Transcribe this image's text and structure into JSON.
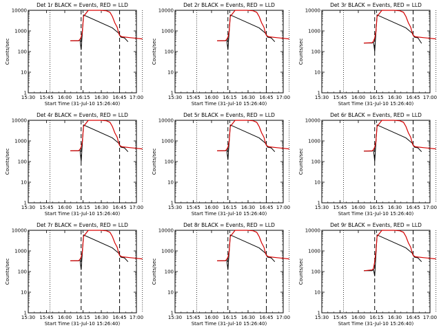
{
  "chart_data": [
    {
      "type": "line",
      "title": "Det 1r BLACK = Events, RED = LLD",
      "xlabel": "Start Time (31-Jul-10 15:26:40)",
      "ylabel": "Counts/sec",
      "x_ticks": [
        "15:30",
        "15:45",
        "16:00",
        "16:15",
        "16:30",
        "16:45",
        "17:00"
      ],
      "y_ticks": [
        "1",
        "10",
        "100",
        "1000",
        "10000"
      ],
      "yscale": "log",
      "ylim": [
        1,
        10000
      ],
      "xlim": [
        "15:30",
        "17:10"
      ],
      "grid": false,
      "dotted_vlines": [
        "15:48",
        "17:05"
      ],
      "dashed_vlines": [
        "16:14",
        "16:46"
      ],
      "series": [
        {
          "color": "#000000",
          "x": [
            "16:05",
            "16:12",
            "16:13",
            "16:14",
            "16:16",
            "16:40",
            "16:45",
            "16:46",
            "16:47",
            "16:50",
            "16:53"
          ],
          "y": [
            330,
            330,
            380,
            120,
            6000,
            1400,
            800,
            650,
            500,
            460,
            300
          ]
        },
        {
          "color": "#d40000",
          "x": [
            "16:05",
            "16:12",
            "16:13",
            "16:14",
            "16:15",
            "16:16",
            "16:20",
            "16:30",
            "16:35",
            "16:38",
            "16:40",
            "16:42",
            "16:44",
            "16:45",
            "16:46",
            "16:48",
            "16:55",
            "17:00",
            "17:05"
          ],
          "y": [
            330,
            340,
            390,
            500,
            900,
            5000,
            10000,
            10000,
            9500,
            8000,
            5000,
            2500,
            1500,
            900,
            600,
            520,
            470,
            440,
            410
          ]
        }
      ]
    },
    {
      "type": "line",
      "title": "Det 2r BLACK = Events, RED = LLD",
      "xlabel": "Start Time (31-Jul-10 15:26:40)",
      "ylabel": "Counts/sec",
      "x_ticks": [
        "15:30",
        "15:45",
        "16:00",
        "16:15",
        "16:30",
        "16:45",
        "17:00"
      ],
      "y_ticks": [
        "1",
        "10",
        "100",
        "1000",
        "10000"
      ],
      "yscale": "log",
      "ylim": [
        1,
        10000
      ],
      "xlim": [
        "15:30",
        "17:10"
      ],
      "grid": false,
      "dotted_vlines": [
        "15:48",
        "17:05"
      ],
      "dashed_vlines": [
        "16:14",
        "16:46"
      ],
      "series": [
        {
          "color": "#000000",
          "x": [
            "16:05",
            "16:12",
            "16:13",
            "16:14",
            "16:16",
            "16:40",
            "16:45",
            "16:46",
            "16:47",
            "16:50",
            "16:53"
          ],
          "y": [
            330,
            330,
            380,
            120,
            6000,
            1400,
            800,
            650,
            500,
            460,
            300
          ]
        },
        {
          "color": "#d40000",
          "x": [
            "16:05",
            "16:12",
            "16:13",
            "16:14",
            "16:15",
            "16:16",
            "16:20",
            "16:30",
            "16:35",
            "16:38",
            "16:40",
            "16:42",
            "16:44",
            "16:45",
            "16:46",
            "16:48",
            "16:55",
            "17:00",
            "17:05"
          ],
          "y": [
            330,
            340,
            390,
            500,
            900,
            5000,
            10000,
            10000,
            9500,
            8000,
            5000,
            2500,
            1500,
            900,
            600,
            520,
            470,
            440,
            410
          ]
        }
      ]
    },
    {
      "type": "line",
      "title": "Det 3r BLACK = Events, RED = LLD",
      "xlabel": "Start Time (31-Jul-10 15:26:40)",
      "ylabel": "Counts/sec",
      "x_ticks": [
        "15:30",
        "15:45",
        "16:00",
        "16:15",
        "16:30",
        "16:45",
        "17:00"
      ],
      "y_ticks": [
        "1",
        "10",
        "100",
        "1000",
        "10000"
      ],
      "yscale": "log",
      "ylim": [
        1,
        10000
      ],
      "xlim": [
        "15:30",
        "17:10"
      ],
      "grid": false,
      "dotted_vlines": [
        "15:48",
        "17:05"
      ],
      "dashed_vlines": [
        "16:14",
        "16:46"
      ],
      "series": [
        {
          "color": "#000000",
          "x": [
            "16:05",
            "16:12",
            "16:13",
            "16:14",
            "16:16",
            "16:40",
            "16:45",
            "16:46",
            "16:47",
            "16:50",
            "16:53"
          ],
          "y": [
            260,
            260,
            300,
            100,
            6000,
            1400,
            800,
            650,
            500,
            460,
            250
          ]
        },
        {
          "color": "#d40000",
          "x": [
            "16:05",
            "16:12",
            "16:13",
            "16:14",
            "16:15",
            "16:16",
            "16:20",
            "16:30",
            "16:35",
            "16:38",
            "16:40",
            "16:42",
            "16:44",
            "16:45",
            "16:46",
            "16:48",
            "16:55",
            "17:00",
            "17:05"
          ],
          "y": [
            260,
            270,
            320,
            450,
            900,
            5000,
            10000,
            10000,
            9500,
            8000,
            5000,
            2500,
            1500,
            900,
            600,
            520,
            470,
            440,
            410
          ]
        }
      ]
    },
    {
      "type": "line",
      "title": "Det 4r BLACK = Events, RED = LLD",
      "xlabel": "Start Time (31-Jul-10 15:26:40)",
      "ylabel": "Counts/sec",
      "x_ticks": [
        "15:30",
        "15:45",
        "16:00",
        "16:15",
        "16:30",
        "16:45",
        "17:00"
      ],
      "y_ticks": [
        "1",
        "10",
        "100",
        "1000",
        "10000"
      ],
      "yscale": "log",
      "ylim": [
        1,
        10000
      ],
      "xlim": [
        "15:30",
        "17:10"
      ],
      "grid": false,
      "dotted_vlines": [
        "15:48",
        "17:05"
      ],
      "dashed_vlines": [
        "16:14",
        "16:46"
      ],
      "series": [
        {
          "color": "#000000",
          "x": [
            "16:05",
            "16:12",
            "16:13",
            "16:14",
            "16:16",
            "16:40",
            "16:45",
            "16:46",
            "16:47",
            "16:50",
            "16:53"
          ],
          "y": [
            330,
            330,
            380,
            100,
            6000,
            1400,
            800,
            650,
            500,
            460,
            300
          ]
        },
        {
          "color": "#d40000",
          "x": [
            "16:05",
            "16:12",
            "16:13",
            "16:14",
            "16:15",
            "16:16",
            "16:20",
            "16:30",
            "16:35",
            "16:38",
            "16:40",
            "16:42",
            "16:44",
            "16:45",
            "16:46",
            "16:48",
            "16:55",
            "17:00",
            "17:05"
          ],
          "y": [
            330,
            340,
            390,
            500,
            900,
            5000,
            10000,
            10000,
            9500,
            8000,
            5000,
            2500,
            1500,
            900,
            600,
            520,
            470,
            440,
            410
          ]
        }
      ]
    },
    {
      "type": "line",
      "title": "Det 5r BLACK = Events, RED = LLD",
      "xlabel": "Start Time (31-Jul-10 15:26:40)",
      "ylabel": "Counts/sec",
      "x_ticks": [
        "15:30",
        "15:45",
        "16:00",
        "16:15",
        "16:30",
        "16:45",
        "17:00"
      ],
      "y_ticks": [
        "1",
        "10",
        "100",
        "1000",
        "10000"
      ],
      "yscale": "log",
      "ylim": [
        1,
        10000
      ],
      "xlim": [
        "15:30",
        "17:10"
      ],
      "grid": false,
      "dotted_vlines": [
        "15:48",
        "17:05"
      ],
      "dashed_vlines": [
        "16:14",
        "16:46"
      ],
      "series": [
        {
          "color": "#000000",
          "x": [
            "16:05",
            "16:12",
            "16:13",
            "16:14",
            "16:16",
            "16:40",
            "16:45",
            "16:46",
            "16:47",
            "16:50",
            "16:53"
          ],
          "y": [
            330,
            330,
            380,
            120,
            6000,
            1400,
            800,
            650,
            500,
            460,
            300
          ]
        },
        {
          "color": "#d40000",
          "x": [
            "16:05",
            "16:12",
            "16:13",
            "16:14",
            "16:15",
            "16:16",
            "16:20",
            "16:30",
            "16:35",
            "16:38",
            "16:40",
            "16:42",
            "16:44",
            "16:45",
            "16:46",
            "16:48",
            "16:55",
            "17:00",
            "17:05"
          ],
          "y": [
            330,
            340,
            390,
            500,
            900,
            5000,
            10000,
            10000,
            9500,
            8000,
            5000,
            2500,
            1500,
            900,
            600,
            520,
            470,
            440,
            410
          ]
        }
      ]
    },
    {
      "type": "line",
      "title": "Det 6r BLACK = Events, RED = LLD",
      "xlabel": "Start Time (31-Jul-10 15:26:40)",
      "ylabel": "Counts/sec",
      "x_ticks": [
        "15:30",
        "15:45",
        "16:00",
        "16:15",
        "16:30",
        "16:45",
        "17:00"
      ],
      "y_ticks": [
        "1",
        "10",
        "100",
        "1000",
        "10000"
      ],
      "yscale": "log",
      "ylim": [
        1,
        10000
      ],
      "xlim": [
        "15:30",
        "17:10"
      ],
      "grid": false,
      "dotted_vlines": [
        "15:48",
        "17:05"
      ],
      "dashed_vlines": [
        "16:14",
        "16:46"
      ],
      "series": [
        {
          "color": "#000000",
          "x": [
            "16:05",
            "16:12",
            "16:13",
            "16:14",
            "16:16",
            "16:40",
            "16:45",
            "16:46",
            "16:47",
            "16:50",
            "16:53"
          ],
          "y": [
            320,
            320,
            370,
            100,
            6000,
            1400,
            800,
            650,
            500,
            460,
            300
          ]
        },
        {
          "color": "#d40000",
          "x": [
            "16:05",
            "16:12",
            "16:13",
            "16:14",
            "16:15",
            "16:16",
            "16:20",
            "16:30",
            "16:35",
            "16:38",
            "16:40",
            "16:42",
            "16:44",
            "16:45",
            "16:46",
            "16:48",
            "16:55",
            "17:00",
            "17:05"
          ],
          "y": [
            320,
            330,
            380,
            500,
            900,
            5000,
            10000,
            10000,
            9500,
            8000,
            5000,
            2500,
            1500,
            900,
            600,
            520,
            470,
            440,
            410
          ]
        }
      ]
    },
    {
      "type": "line",
      "title": "Det 7r BLACK = Events, RED = LLD",
      "xlabel": "Start Time (31-Jul-10 15:26:40)",
      "ylabel": "Counts/sec",
      "x_ticks": [
        "15:30",
        "15:45",
        "16:00",
        "16:15",
        "16:30",
        "16:45",
        "17:00"
      ],
      "y_ticks": [
        "1",
        "10",
        "100",
        "1000",
        "10000"
      ],
      "yscale": "log",
      "ylim": [
        1,
        10000
      ],
      "xlim": [
        "15:30",
        "17:10"
      ],
      "grid": false,
      "dotted_vlines": [
        "15:48",
        "17:05"
      ],
      "dashed_vlines": [
        "16:14",
        "16:46"
      ],
      "series": [
        {
          "color": "#000000",
          "x": [
            "16:05",
            "16:12",
            "16:13",
            "16:14",
            "16:16",
            "16:40",
            "16:45",
            "16:46",
            "16:47",
            "16:50",
            "16:53"
          ],
          "y": [
            330,
            330,
            380,
            120,
            6000,
            1400,
            800,
            650,
            500,
            460,
            300
          ]
        },
        {
          "color": "#d40000",
          "x": [
            "16:05",
            "16:12",
            "16:13",
            "16:14",
            "16:15",
            "16:16",
            "16:20",
            "16:30",
            "16:35",
            "16:38",
            "16:40",
            "16:42",
            "16:44",
            "16:45",
            "16:46",
            "16:48",
            "16:55",
            "17:00",
            "17:05"
          ],
          "y": [
            330,
            340,
            390,
            500,
            900,
            5000,
            10000,
            10000,
            9500,
            8000,
            5000,
            2500,
            1500,
            900,
            600,
            520,
            470,
            440,
            410
          ]
        }
      ]
    },
    {
      "type": "line",
      "title": "Det 8r BLACK = Events, RED = LLD",
      "xlabel": "Start Time (31-Jul-10 15:26:40)",
      "ylabel": "Counts/sec",
      "x_ticks": [
        "15:30",
        "15:45",
        "16:00",
        "16:15",
        "16:30",
        "16:45",
        "17:00"
      ],
      "y_ticks": [
        "1",
        "10",
        "100",
        "1000",
        "10000"
      ],
      "yscale": "log",
      "ylim": [
        1,
        10000
      ],
      "xlim": [
        "15:30",
        "17:10"
      ],
      "grid": false,
      "dotted_vlines": [
        "15:48",
        "17:05"
      ],
      "dashed_vlines": [
        "16:14",
        "16:46"
      ],
      "series": [
        {
          "color": "#000000",
          "x": [
            "16:05",
            "16:12",
            "16:13",
            "16:14",
            "16:16",
            "16:40",
            "16:45",
            "16:46",
            "16:47",
            "16:50",
            "16:53"
          ],
          "y": [
            330,
            330,
            380,
            120,
            6000,
            1400,
            800,
            650,
            500,
            460,
            300
          ]
        },
        {
          "color": "#d40000",
          "x": [
            "16:05",
            "16:12",
            "16:13",
            "16:14",
            "16:15",
            "16:16",
            "16:20",
            "16:30",
            "16:35",
            "16:38",
            "16:40",
            "16:42",
            "16:44",
            "16:45",
            "16:46",
            "16:48",
            "16:55",
            "17:00",
            "17:05"
          ],
          "y": [
            330,
            340,
            390,
            500,
            900,
            5000,
            10000,
            10000,
            9500,
            8000,
            5000,
            2500,
            1500,
            900,
            600,
            520,
            470,
            440,
            410
          ]
        }
      ]
    },
    {
      "type": "line",
      "title": "Det 9r BLACK = Events, RED = LLD",
      "xlabel": "Start Time (31-Jul-10 15:26:40)",
      "ylabel": "Counts/sec",
      "x_ticks": [
        "15:30",
        "15:45",
        "16:00",
        "16:15",
        "16:30",
        "16:45",
        "17:00"
      ],
      "y_ticks": [
        "1",
        "10",
        "100",
        "1000",
        "10000"
      ],
      "yscale": "log",
      "ylim": [
        1,
        10000
      ],
      "xlim": [
        "15:30",
        "17:10"
      ],
      "grid": false,
      "dotted_vlines": [
        "15:48",
        "17:05"
      ],
      "dashed_vlines": [
        "16:14",
        "16:46"
      ],
      "series": [
        {
          "color": "#000000",
          "x": [
            "16:05",
            "16:12",
            "16:13",
            "16:14",
            "16:16",
            "16:40",
            "16:45",
            "16:46",
            "16:47",
            "16:50",
            "16:53"
          ],
          "y": [
            110,
            110,
            130,
            60,
            6000,
            1400,
            800,
            650,
            500,
            460,
            300
          ]
        },
        {
          "color": "#d40000",
          "x": [
            "16:05",
            "16:12",
            "16:13",
            "16:14",
            "16:15",
            "16:16",
            "16:20",
            "16:30",
            "16:35",
            "16:38",
            "16:40",
            "16:42",
            "16:44",
            "16:45",
            "16:46",
            "16:48",
            "16:55",
            "17:00",
            "17:05"
          ],
          "y": [
            110,
            120,
            140,
            300,
            900,
            5000,
            10000,
            10000,
            9500,
            8000,
            5000,
            2500,
            1500,
            900,
            600,
            520,
            470,
            440,
            410
          ]
        }
      ]
    }
  ]
}
